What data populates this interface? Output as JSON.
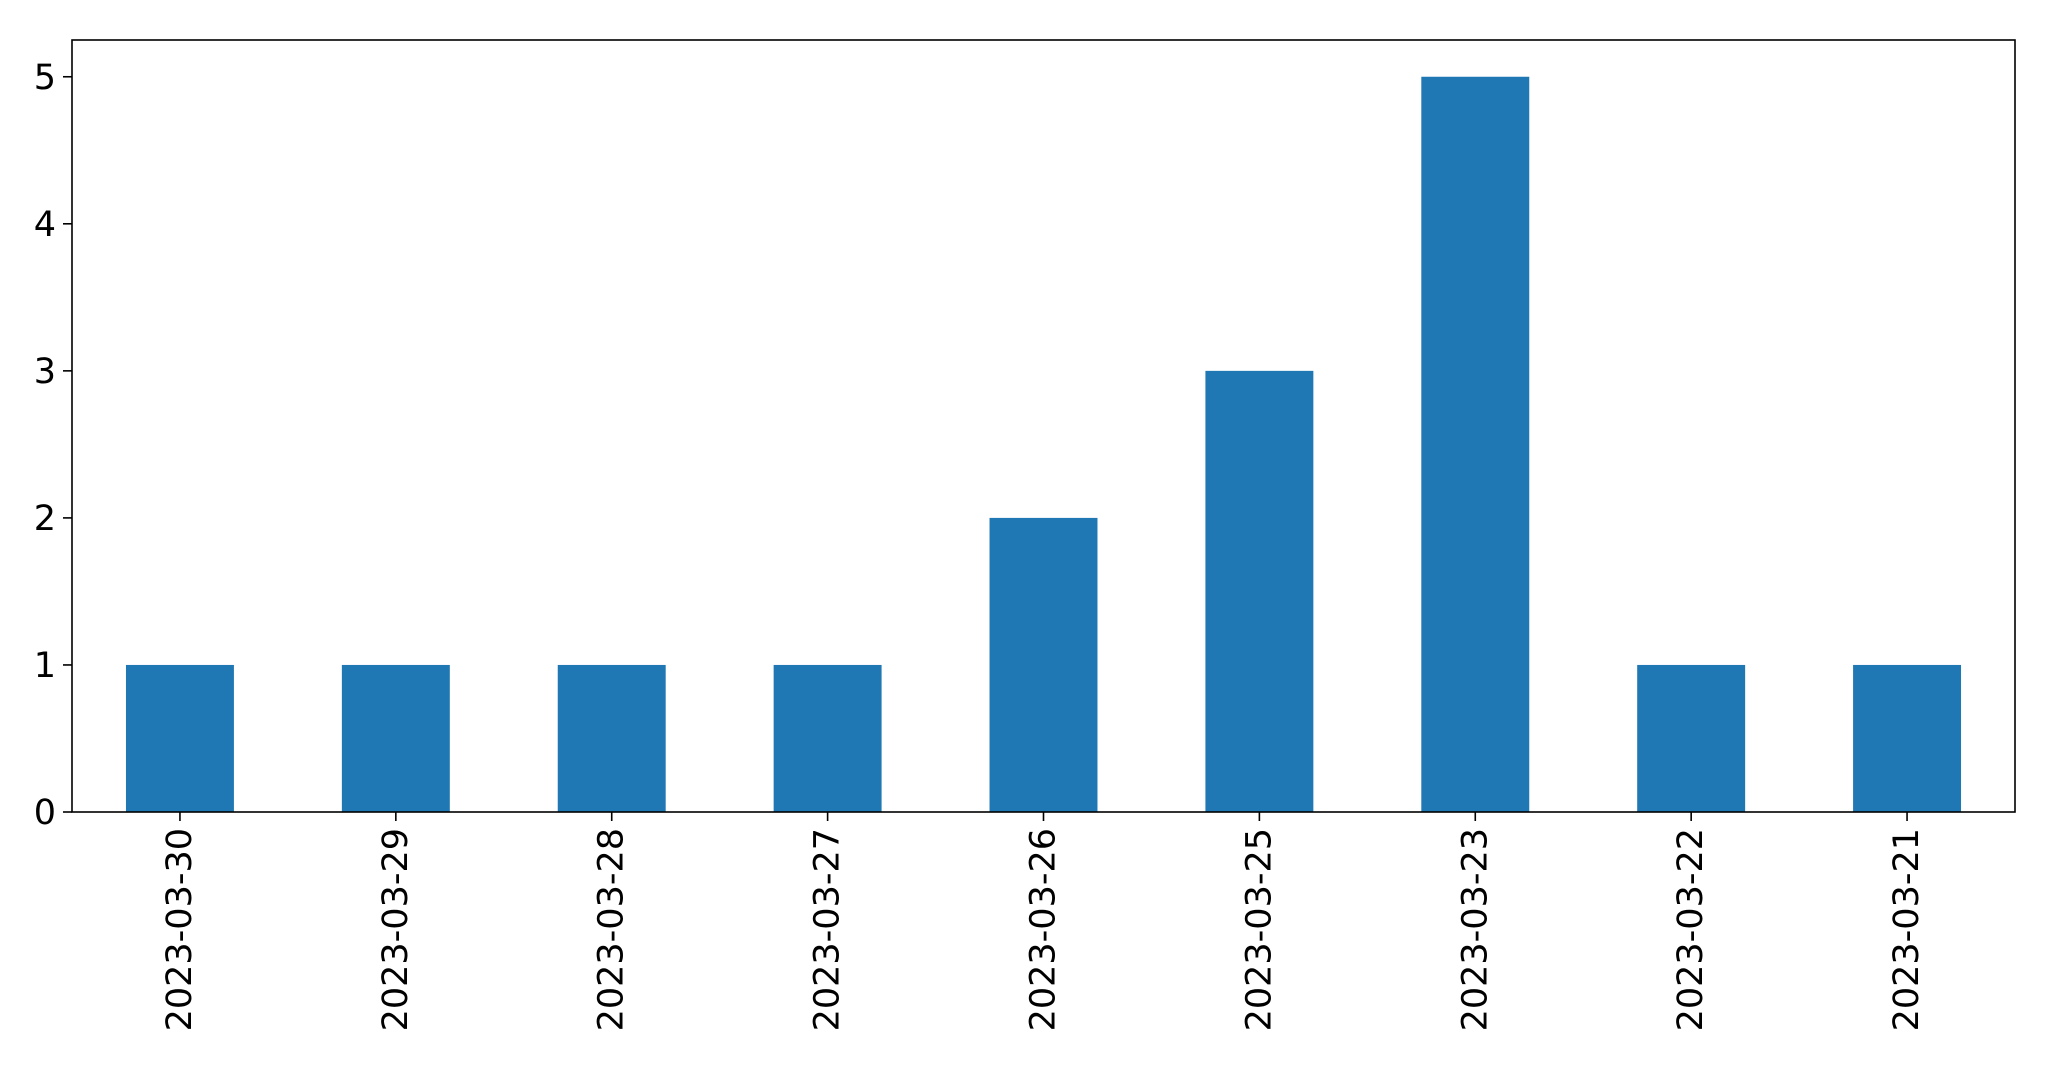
{
  "chart_data": {
    "type": "bar",
    "title": "",
    "xlabel": "",
    "ylabel": "",
    "categories": [
      "2023-03-30",
      "2023-03-29",
      "2023-03-28",
      "2023-03-27",
      "2023-03-26",
      "2023-03-25",
      "2023-03-23",
      "2023-03-22",
      "2023-03-21"
    ],
    "values": [
      1,
      1,
      1,
      1,
      2,
      3,
      5,
      1,
      1
    ],
    "ylim": [
      0,
      5.25
    ],
    "yticks": [
      "0",
      "1",
      "2",
      "3",
      "4",
      "5"
    ],
    "grid": false,
    "legend": false,
    "tick_label_rotation": "vertical",
    "bar_color": "#1f77b4",
    "axis_color": "#000000"
  }
}
